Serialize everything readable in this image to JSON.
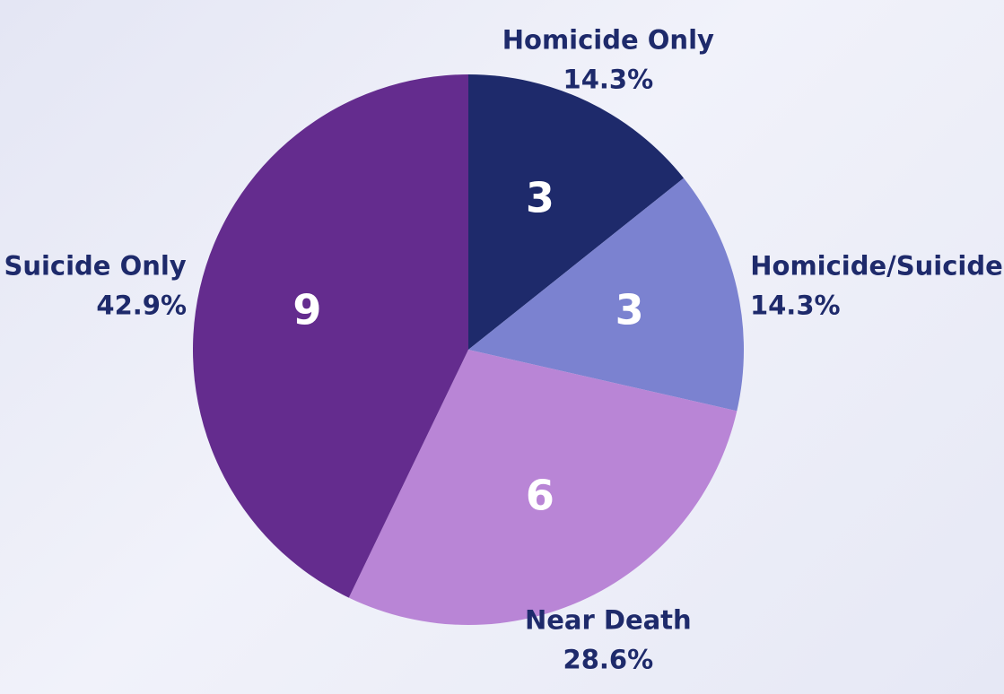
{
  "chart_data": {
    "type": "pie",
    "categories": [
      "Homicide Only",
      "Homicide/Suicide",
      "Near Death",
      "Suicide Only"
    ],
    "values": [
      3,
      3,
      6,
      9
    ],
    "percent_labels": [
      "14.3%",
      "14.3%",
      "28.6%",
      "42.9%"
    ],
    "colors": [
      "#1e2a6b",
      "#7b82d0",
      "#b985d6",
      "#642c8e"
    ]
  }
}
